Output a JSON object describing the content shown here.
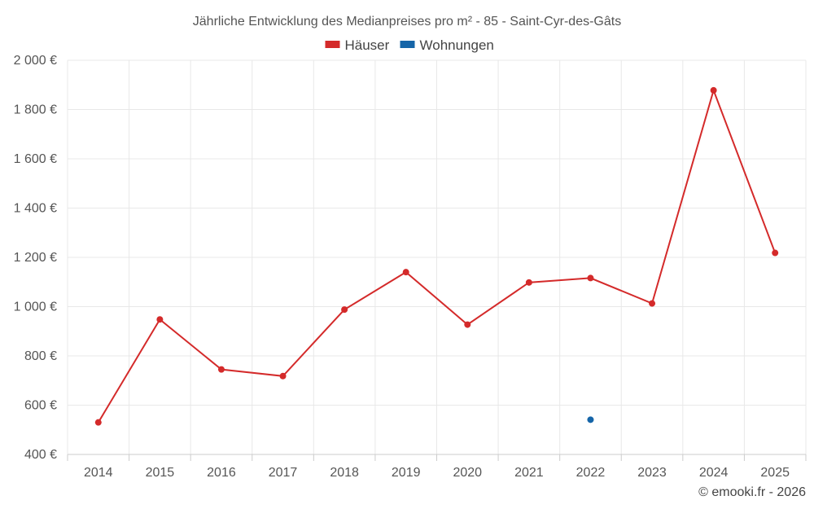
{
  "chart_data": {
    "type": "line",
    "title": "Jährliche Entwicklung des Medianpreises pro m² - 85 - Saint-Cyr-des-Gâts",
    "categories": [
      "2014",
      "2015",
      "2016",
      "2017",
      "2018",
      "2019",
      "2020",
      "2021",
      "2022",
      "2023",
      "2024",
      "2025"
    ],
    "y_tick_labels": [
      "400 €",
      "600 €",
      "800 €",
      "1 000 €",
      "1 200 €",
      "1 400 €",
      "1 600 €",
      "1 800 €",
      "2 000 €"
    ],
    "y_ticks": [
      400,
      600,
      800,
      1000,
      1200,
      1400,
      1600,
      1800,
      2000
    ],
    "ylim": [
      400,
      2000
    ],
    "xlabel": "",
    "ylabel": "",
    "grid": true,
    "legend_position": "top-center",
    "series": [
      {
        "name": "Häuser",
        "color": "#d42a2a",
        "values": [
          530,
          948,
          745,
          718,
          988,
          1140,
          927,
          1098,
          1116,
          1013,
          1878,
          1218
        ]
      },
      {
        "name": "Wohnungen",
        "color": "#1565a8",
        "values": [
          null,
          null,
          null,
          null,
          null,
          null,
          null,
          null,
          541,
          null,
          null,
          null
        ]
      }
    ]
  },
  "credit": "© emooki.fr - 2026"
}
